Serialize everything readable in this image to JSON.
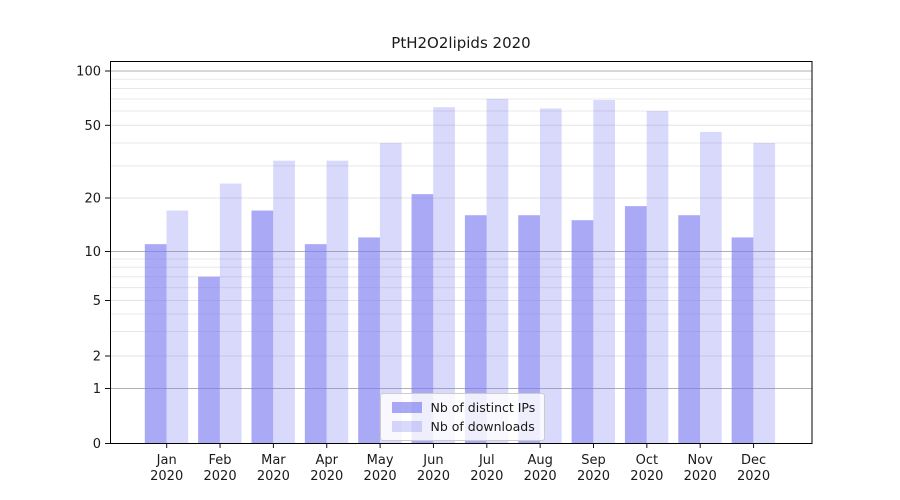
{
  "figure": {
    "background": "#ffffff",
    "text_color": "#1a1a1a"
  },
  "chart_data": {
    "type": "bar",
    "title": "PtH2O2lipids 2020",
    "xlabel": "",
    "ylabel": "",
    "categories": [
      "Jan",
      "Feb",
      "Mar",
      "Apr",
      "May",
      "Jun",
      "Jul",
      "Aug",
      "Sep",
      "Oct",
      "Nov",
      "Dec"
    ],
    "category_year_label": "2020",
    "series": [
      {
        "name": "Nb of distinct IPs",
        "values": [
          11,
          7,
          17,
          11,
          12,
          21,
          16,
          16,
          15,
          18,
          16,
          12
        ]
      },
      {
        "name": "Nb of downloads",
        "values": [
          17,
          24,
          32,
          32,
          40,
          63,
          70,
          62,
          69,
          60,
          46,
          40
        ]
      }
    ],
    "yscale": "log-like-with-zero-baseline",
    "ylim": [
      0,
      100
    ],
    "yticks": [
      0,
      1,
      2,
      5,
      10,
      20,
      50,
      100
    ],
    "yticks_emphasized": [
      1,
      10,
      100
    ],
    "yticks_minor": [
      3,
      4,
      6,
      7,
      8,
      9,
      30,
      40,
      60,
      70,
      80,
      90
    ],
    "grid": "on",
    "legend_position": "inside-bottom-center",
    "colors": {
      "bar_base_rgb": "120,120,240",
      "alpha_distinct_ips": 0.64,
      "alpha_downloads": 0.28,
      "bar_ips_effective": "#a8a8f6",
      "bar_downloads_effective": "#d9d9fb",
      "gridline_major": "#b0b0b0",
      "gridline_minor": "#e8e8e8",
      "axis_spine": "#000000",
      "legend_border": "#cccccc"
    }
  }
}
